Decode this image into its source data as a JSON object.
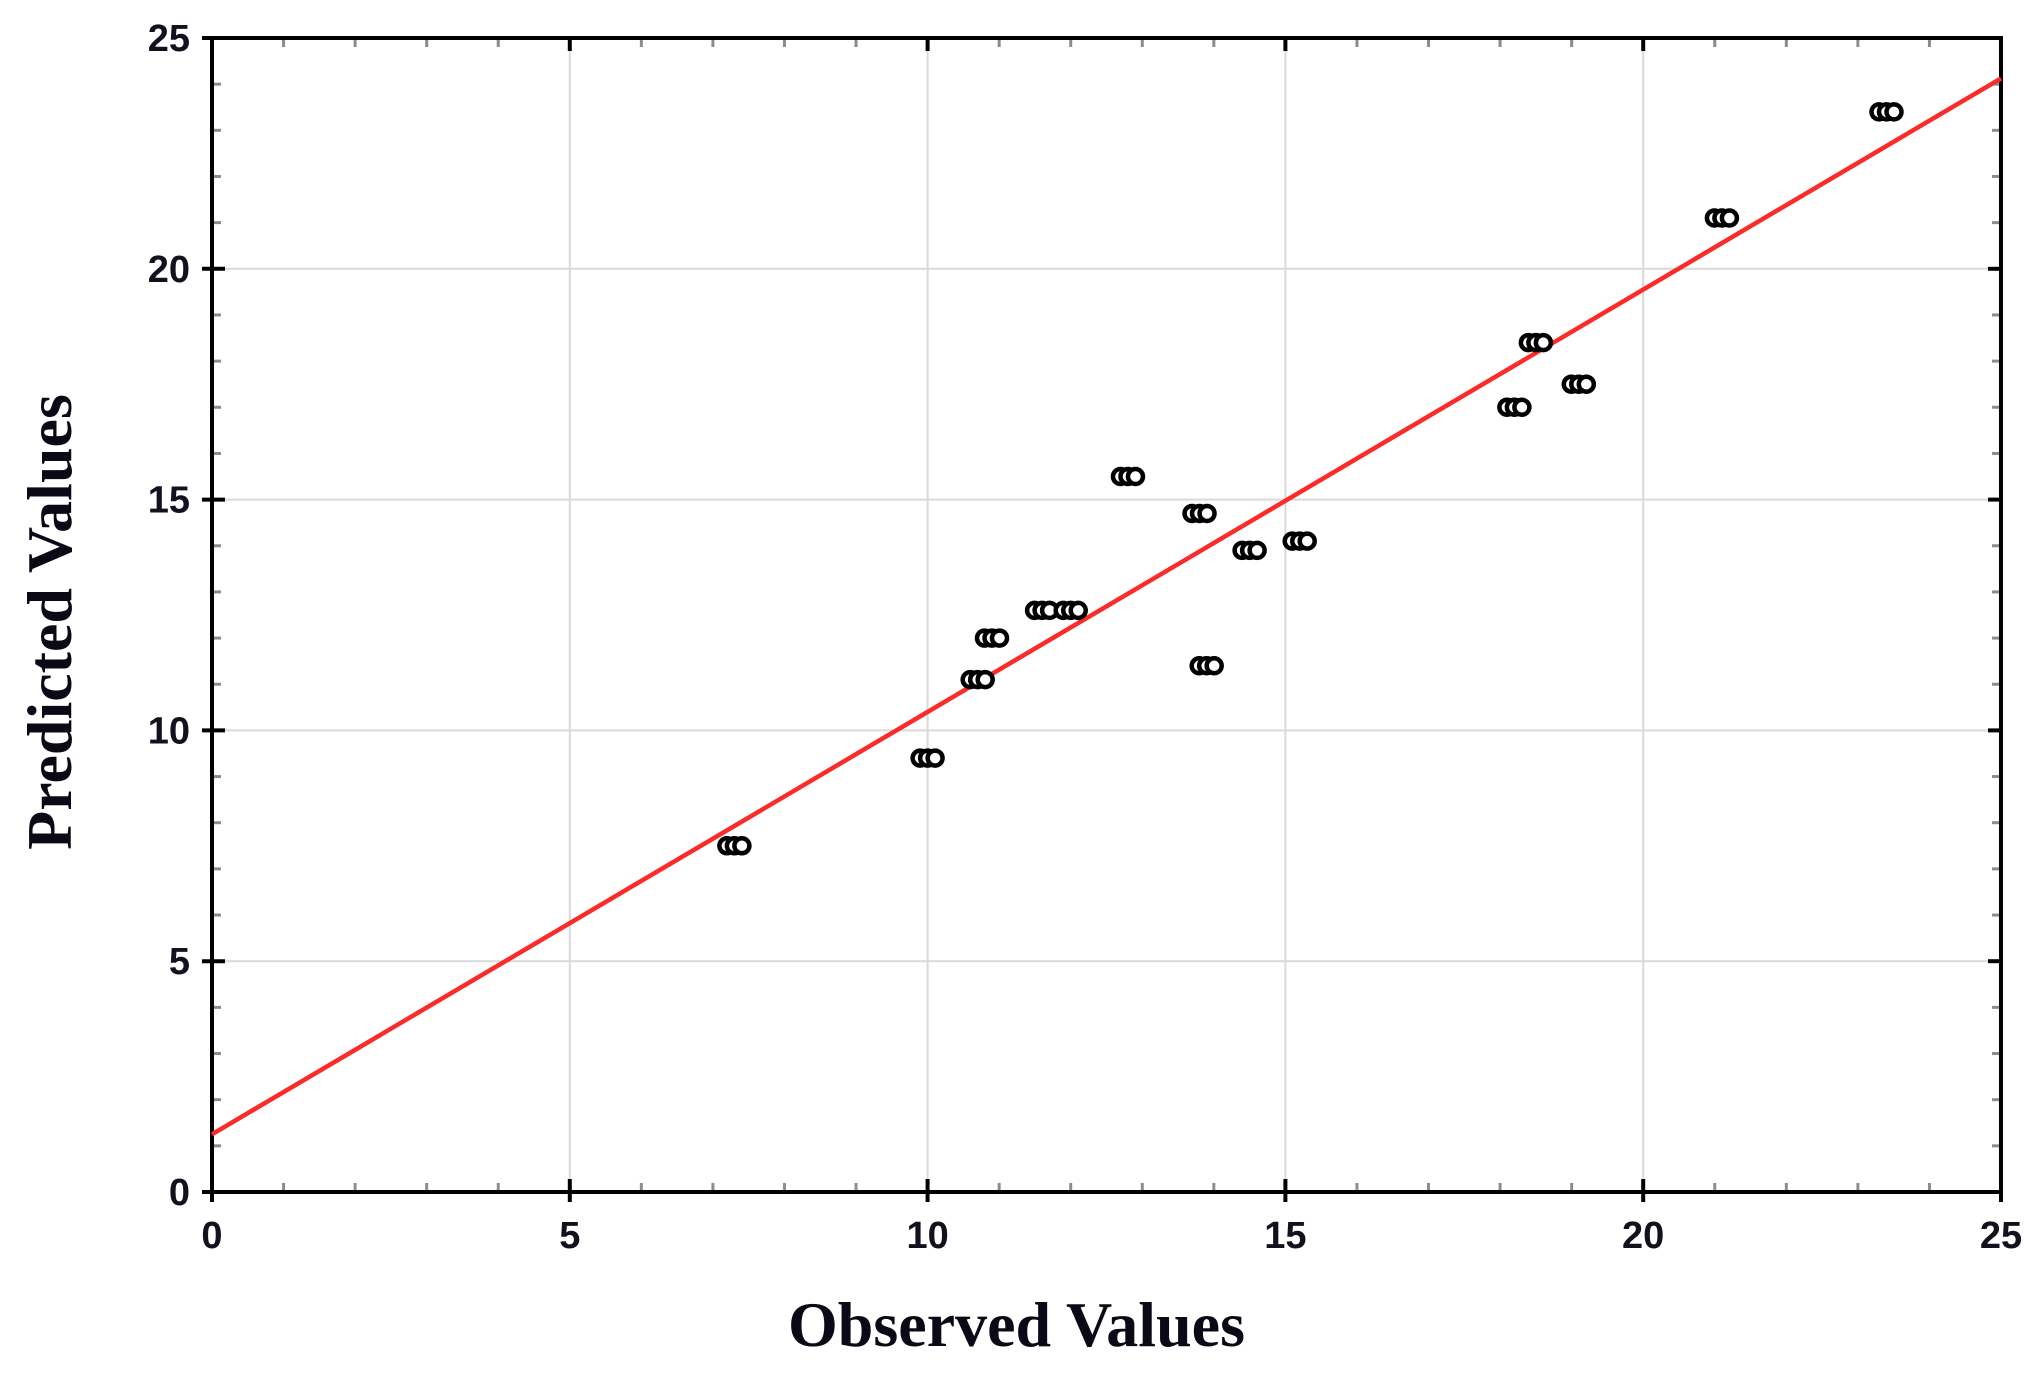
{
  "chart_data": {
    "type": "scatter",
    "title": "",
    "xlabel": "Observed Values",
    "ylabel": "Predicted Values",
    "xlim": [
      0,
      25
    ],
    "ylim": [
      0,
      25
    ],
    "x_ticks": [
      0,
      5,
      10,
      15,
      20,
      25
    ],
    "y_ticks": [
      0,
      5,
      10,
      15,
      20,
      25
    ],
    "minor_tick_step": 1,
    "grid": true,
    "legend": "none",
    "points": [
      [
        7.3,
        7.5
      ],
      [
        10.0,
        9.4
      ],
      [
        10.7,
        11.1
      ],
      [
        10.9,
        12.0
      ],
      [
        11.6,
        12.6
      ],
      [
        12.0,
        12.6
      ],
      [
        12.8,
        15.5
      ],
      [
        13.8,
        14.7
      ],
      [
        13.9,
        11.4
      ],
      [
        14.5,
        13.9
      ],
      [
        15.2,
        14.1
      ],
      [
        18.2,
        17.0
      ],
      [
        18.5,
        18.4
      ],
      [
        19.1,
        17.5
      ],
      [
        21.1,
        21.1
      ],
      [
        23.4,
        23.4
      ]
    ],
    "fit_line": {
      "intercept": 1.25,
      "slope": 0.915
    },
    "colors": {
      "fit_line": "#fb2b2a",
      "marker_stroke": "#000000",
      "marker_fill": "#ffffff",
      "grid": "#d9d9d9",
      "frame": "#000000",
      "minor_tick": "#8c8c8c",
      "tick_label": "#12121f",
      "axis_title": "#0a0a16"
    }
  }
}
